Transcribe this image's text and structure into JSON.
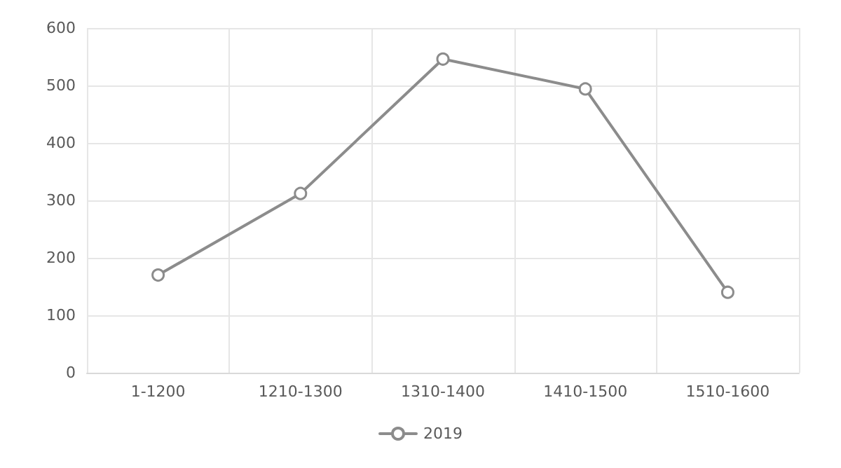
{
  "chart_data": {
    "type": "line",
    "categories": [
      "1-1200",
      "1210-1300",
      "1310-1400",
      "1410-1500",
      "1510-1600"
    ],
    "series": [
      {
        "name": "2019",
        "color": "#8c8c8c",
        "values": [
          170,
          312,
          546,
          494,
          140
        ]
      }
    ],
    "ylim": [
      0,
      600
    ],
    "yticks": [
      0,
      100,
      200,
      300,
      400,
      500,
      600
    ],
    "grid": true,
    "legend": "bottom",
    "marker": "circle",
    "line_style": "solid"
  }
}
